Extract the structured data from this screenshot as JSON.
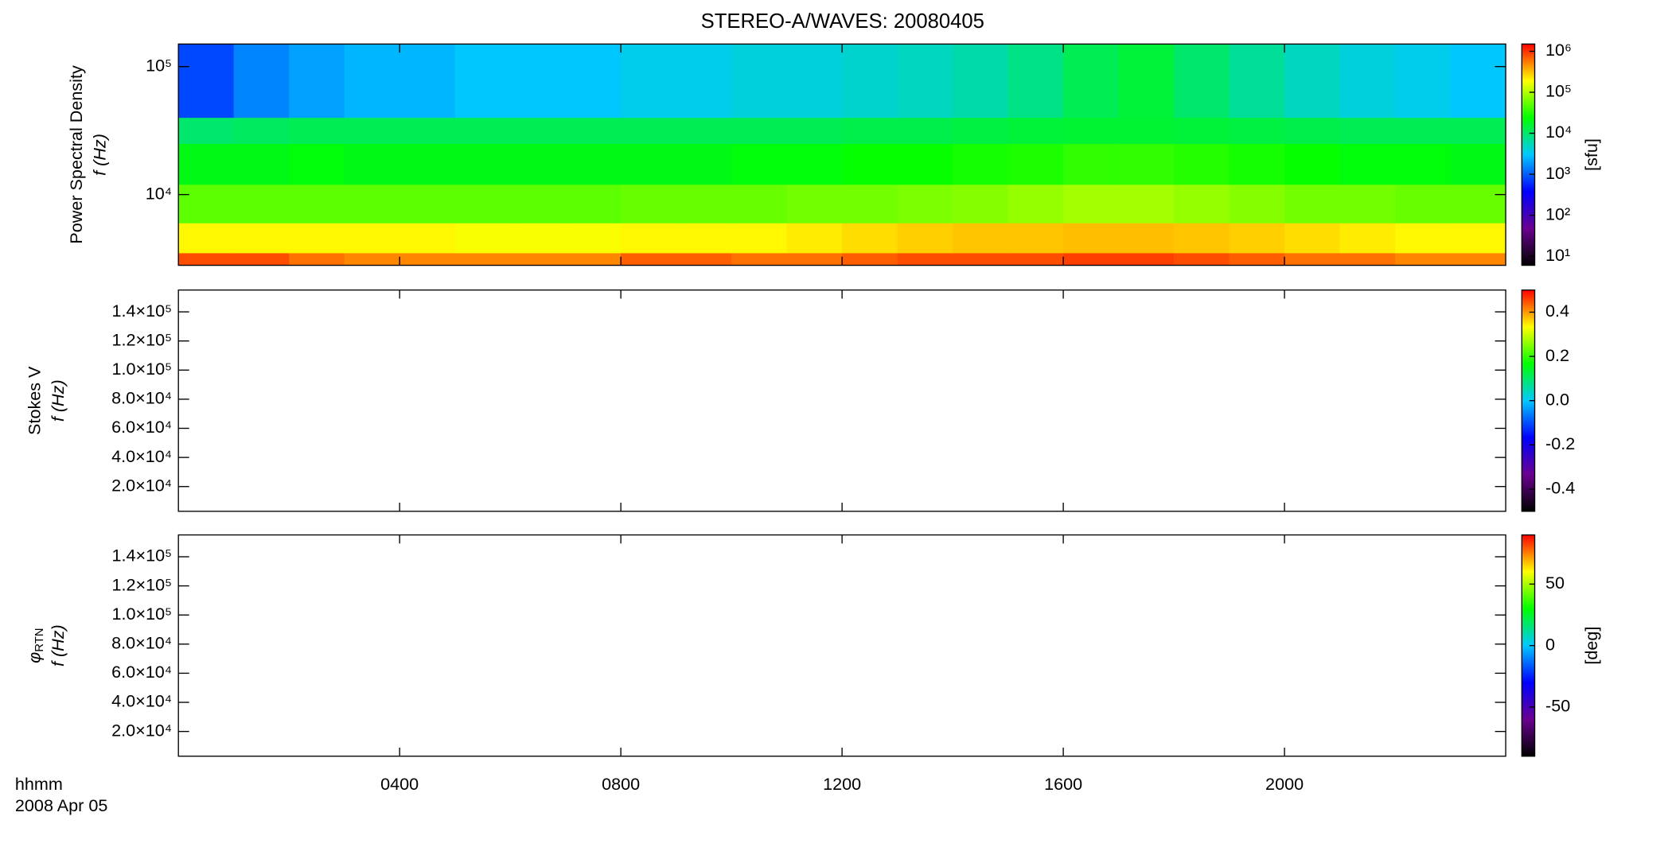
{
  "chart_data": [
    {
      "type": "heatmap",
      "title": "STEREO-A/WAVES: 20080405",
      "ylabel": "Power Spectral Density",
      "ylabel2": "f (Hz)",
      "yscale": "log",
      "ylim": [
        2800,
        150000
      ],
      "yticks": [
        {
          "value": 10000,
          "label": "10⁴"
        },
        {
          "value": 100000,
          "label": "10⁵"
        }
      ],
      "xlim": [
        0,
        24
      ],
      "cscale": "log",
      "clim": [
        6,
        1500000
      ],
      "cticks": [
        {
          "value": 10,
          "label": "10¹"
        },
        {
          "value": 100,
          "label": "10²"
        },
        {
          "value": 1000,
          "label": "10³"
        },
        {
          "value": 10000,
          "label": "10⁴"
        },
        {
          "value": 100000,
          "label": "10⁵"
        },
        {
          "value": 1000000,
          "label": "10⁶"
        }
      ],
      "clabel": "[sfu]",
      "colormap": [
        "#000000",
        "#6a0090",
        "#0000ff",
        "#00c8ff",
        "#00ff00",
        "#ffff00",
        "#ff0000"
      ],
      "x_bins": [
        0,
        1,
        2,
        3,
        4,
        5,
        6,
        7,
        8,
        9,
        10,
        11,
        12,
        13,
        14,
        15,
        16,
        17,
        18,
        19,
        20,
        21,
        22,
        23,
        24
      ],
      "y_bins": [
        2800,
        3500,
        6000,
        12000,
        25000,
        40000,
        150000
      ],
      "z": [
        [
          800000,
          800000,
          600000,
          500000,
          500000,
          500000,
          500000,
          500000,
          700000,
          700000,
          600000,
          600000,
          700000,
          800000,
          800000,
          800000,
          900000,
          900000,
          800000,
          700000,
          600000,
          600000,
          500000,
          500000
        ],
        [
          200000,
          200000,
          200000,
          200000,
          200000,
          180000,
          180000,
          180000,
          200000,
          200000,
          200000,
          220000,
          250000,
          280000,
          300000,
          300000,
          320000,
          320000,
          300000,
          280000,
          250000,
          220000,
          200000,
          200000
        ],
        [
          50000,
          50000,
          50000,
          50000,
          50000,
          50000,
          50000,
          50000,
          55000,
          55000,
          55000,
          60000,
          60000,
          65000,
          70000,
          80000,
          90000,
          90000,
          80000,
          70000,
          60000,
          60000,
          55000,
          55000
        ],
        [
          20000,
          20000,
          22000,
          20000,
          20000,
          20000,
          20000,
          20000,
          20000,
          20000,
          22000,
          22000,
          25000,
          25000,
          28000,
          30000,
          35000,
          35000,
          32000,
          28000,
          25000,
          22000,
          22000,
          20000
        ],
        [
          10000,
          11000,
          12000,
          12000,
          12000,
          12000,
          12000,
          12000,
          12000,
          12000,
          12000,
          12000,
          13000,
          13000,
          14000,
          15000,
          16000,
          16000,
          15000,
          14000,
          13000,
          12000,
          12000,
          12000
        ],
        [
          800,
          1500,
          2000,
          2500,
          2500,
          3000,
          3000,
          3000,
          3500,
          3500,
          4000,
          4000,
          4500,
          5000,
          6000,
          8000,
          12000,
          15000,
          10000,
          7000,
          5000,
          4000,
          3500,
          3000
        ]
      ]
    },
    {
      "type": "heatmap",
      "ylabel": "Stokes V",
      "ylabel2": "f (Hz)",
      "yscale": "linear",
      "ylim": [
        3000,
        155000
      ],
      "yticks": [
        {
          "value": 20000,
          "label": "2.0×10⁴"
        },
        {
          "value": 40000,
          "label": "4.0×10⁴"
        },
        {
          "value": 60000,
          "label": "6.0×10⁴"
        },
        {
          "value": 80000,
          "label": "8.0×10⁴"
        },
        {
          "value": 100000,
          "label": "1.0×10⁵"
        },
        {
          "value": 120000,
          "label": "1.2×10⁵"
        },
        {
          "value": 140000,
          "label": "1.4×10⁵"
        }
      ],
      "xlim": [
        0,
        24
      ],
      "cscale": "linear",
      "clim": [
        -0.5,
        0.5
      ],
      "cticks": [
        -0.4,
        -0.2,
        {
          "value": 0,
          "label": "0.0"
        },
        0.2,
        0.4
      ],
      "colormap": [
        "#000000",
        "#6a0090",
        "#0000ff",
        "#00c8ff",
        "#00ff00",
        "#ffff00",
        "#ff0000"
      ]
    },
    {
      "type": "heatmap",
      "ylabel": "φ",
      "ylabel_sub": "RTN",
      "ylabel2": "f (Hz)",
      "yscale": "linear",
      "ylim": [
        3000,
        155000
      ],
      "yticks": [
        {
          "value": 20000,
          "label": "2.0×10⁴"
        },
        {
          "value": 40000,
          "label": "4.0×10⁴"
        },
        {
          "value": 60000,
          "label": "6.0×10⁴"
        },
        {
          "value": 80000,
          "label": "8.0×10⁴"
        },
        {
          "value": 100000,
          "label": "1.0×10⁵"
        },
        {
          "value": 120000,
          "label": "1.2×10⁵"
        },
        {
          "value": 140000,
          "label": "1.4×10⁵"
        }
      ],
      "xlim": [
        0,
        24
      ],
      "cscale": "linear",
      "clim": [
        -90,
        90
      ],
      "cticks": [
        -50,
        0,
        50
      ],
      "clabel": "[deg]",
      "colormap": [
        "#000000",
        "#6a0090",
        "#0000ff",
        "#00c8ff",
        "#00ff00",
        "#ffff00",
        "#ff0000"
      ],
      "xticks": [
        {
          "value": 4,
          "label": "0400"
        },
        {
          "value": 8,
          "label": "0800"
        },
        {
          "value": 12,
          "label": "1200"
        },
        {
          "value": 16,
          "label": "1600"
        },
        {
          "value": 20,
          "label": "2000"
        }
      ],
      "xlabel": "hhmm",
      "xlabel2": "2008 Apr 05"
    }
  ]
}
